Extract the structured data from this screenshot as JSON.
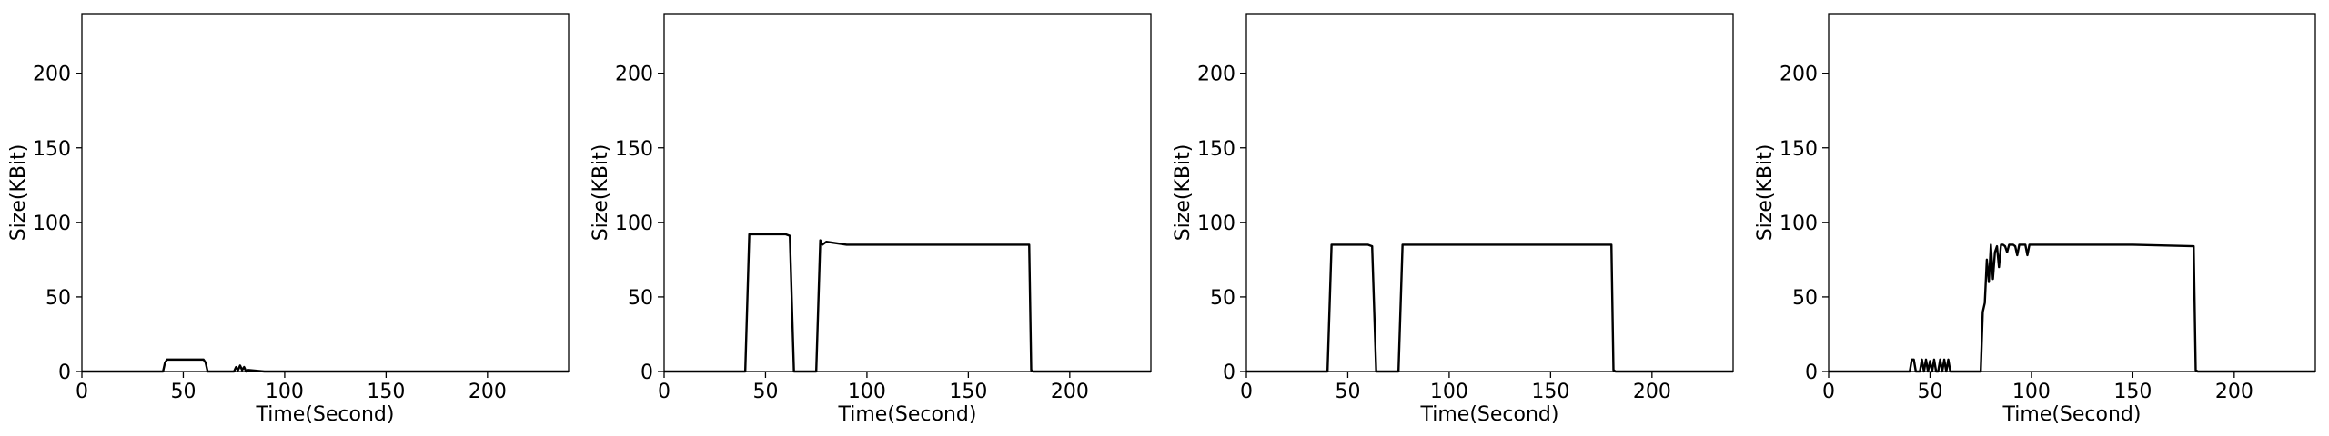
{
  "chart_data": [
    {
      "type": "line",
      "xlabel": "Time(Second)",
      "ylabel": "Size(KBit)",
      "xlim": [
        0,
        240
      ],
      "ylim": [
        0,
        240
      ],
      "xticks": [
        0,
        50,
        100,
        150,
        200
      ],
      "yticks": [
        0,
        50,
        100,
        150,
        200
      ],
      "grid": false,
      "series": [
        {
          "x": [
            0,
            40,
            41,
            42,
            60,
            61,
            62,
            75,
            76,
            77,
            78,
            79,
            80,
            81,
            82,
            90,
            100,
            150,
            200,
            240
          ],
          "y": [
            0,
            0,
            6,
            8,
            8,
            6,
            0,
            0,
            3,
            1,
            4,
            1,
            3,
            0,
            1,
            0,
            0,
            0,
            0,
            0
          ]
        }
      ]
    },
    {
      "type": "line",
      "xlabel": "Time(Second)",
      "ylabel": "Size(KBit)",
      "xlim": [
        0,
        240
      ],
      "ylim": [
        0,
        240
      ],
      "xticks": [
        0,
        50,
        100,
        150,
        200
      ],
      "yticks": [
        0,
        50,
        100,
        150,
        200
      ],
      "grid": false,
      "series": [
        {
          "x": [
            0,
            40,
            42,
            50,
            60,
            62,
            64,
            75,
            77,
            78,
            80,
            90,
            100,
            150,
            180,
            181,
            182,
            200,
            240
          ],
          "y": [
            0,
            0,
            92,
            92,
            92,
            91,
            0,
            0,
            88,
            85,
            87,
            85,
            85,
            85,
            85,
            1,
            0,
            0,
            0
          ]
        }
      ]
    },
    {
      "type": "line",
      "xlabel": "Time(Second)",
      "ylabel": "Size(KBit)",
      "xlim": [
        0,
        240
      ],
      "ylim": [
        0,
        240
      ],
      "xticks": [
        0,
        50,
        100,
        150,
        200
      ],
      "yticks": [
        0,
        50,
        100,
        150,
        200
      ],
      "grid": false,
      "series": [
        {
          "x": [
            0,
            40,
            42,
            50,
            60,
            62,
            64,
            75,
            77,
            80,
            100,
            150,
            180,
            181,
            182,
            200,
            240
          ],
          "y": [
            0,
            0,
            85,
            85,
            85,
            84,
            0,
            0,
            85,
            85,
            85,
            85,
            85,
            1,
            0,
            0,
            0
          ]
        }
      ]
    },
    {
      "type": "line",
      "xlabel": "Time(Second)",
      "ylabel": "Size(KBit)",
      "xlim": [
        0,
        240
      ],
      "ylim": [
        0,
        240
      ],
      "xticks": [
        0,
        50,
        100,
        150,
        200
      ],
      "yticks": [
        0,
        50,
        100,
        150,
        200
      ],
      "grid": false,
      "series": [
        {
          "x": [
            0,
            40,
            41,
            42,
            43,
            45,
            46,
            47,
            48,
            49,
            50,
            51,
            52,
            53,
            54,
            55,
            56,
            57,
            58,
            59,
            60,
            75,
            76,
            77,
            78,
            79,
            80,
            81,
            82,
            83,
            84,
            85,
            86,
            87,
            88,
            89,
            90,
            91,
            92,
            93,
            94,
            95,
            96,
            97,
            98,
            99,
            100,
            110,
            150,
            180,
            181,
            182,
            200,
            240
          ],
          "y": [
            0,
            0,
            8,
            8,
            0,
            0,
            8,
            0,
            8,
            0,
            7,
            0,
            8,
            0,
            0,
            8,
            0,
            8,
            0,
            8,
            0,
            0,
            40,
            46,
            75,
            60,
            85,
            62,
            80,
            84,
            70,
            85,
            85,
            84,
            80,
            85,
            85,
            85,
            84,
            78,
            85,
            85,
            85,
            85,
            78,
            85,
            85,
            85,
            85,
            84,
            1,
            0,
            0,
            0
          ]
        }
      ]
    }
  ]
}
